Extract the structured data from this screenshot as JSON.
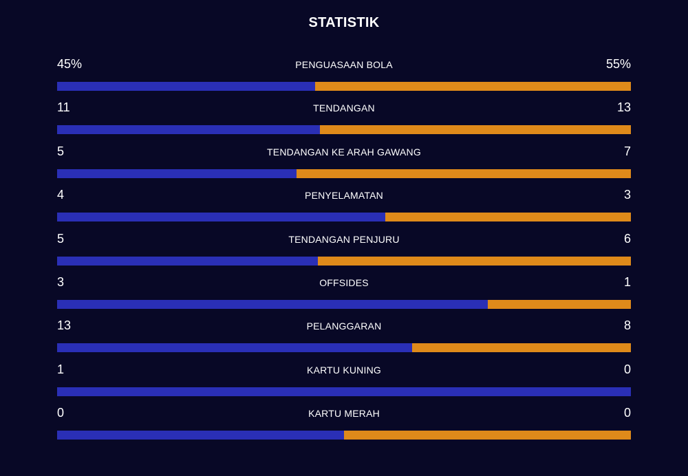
{
  "title": "STATISTIK",
  "colors": {
    "background": "#080826",
    "home": "#2a2fb6",
    "away": "#df8a1a",
    "text": "#ffffff"
  },
  "stats": [
    {
      "label": "PENGUASAAN BOLA",
      "home": "45%",
      "away": "55%",
      "home_share": 0.45
    },
    {
      "label": "TENDANGAN",
      "home": "11",
      "away": "13",
      "home_share": 0.4583
    },
    {
      "label": "TENDANGAN KE ARAH GAWANG",
      "home": "5",
      "away": "7",
      "home_share": 0.4167
    },
    {
      "label": "PENYELAMATAN",
      "home": "4",
      "away": "3",
      "home_share": 0.5714
    },
    {
      "label": "TENDANGAN PENJURU",
      "home": "5",
      "away": "6",
      "home_share": 0.4545
    },
    {
      "label": "OFFSIDES",
      "home": "3",
      "away": "1",
      "home_share": 0.75
    },
    {
      "label": "PELANGGARAN",
      "home": "13",
      "away": "8",
      "home_share": 0.619
    },
    {
      "label": "KARTU KUNING",
      "home": "1",
      "away": "0",
      "home_share": 1.0
    },
    {
      "label": "KARTU MERAH",
      "home": "0",
      "away": "0",
      "home_share": 0.5
    }
  ]
}
